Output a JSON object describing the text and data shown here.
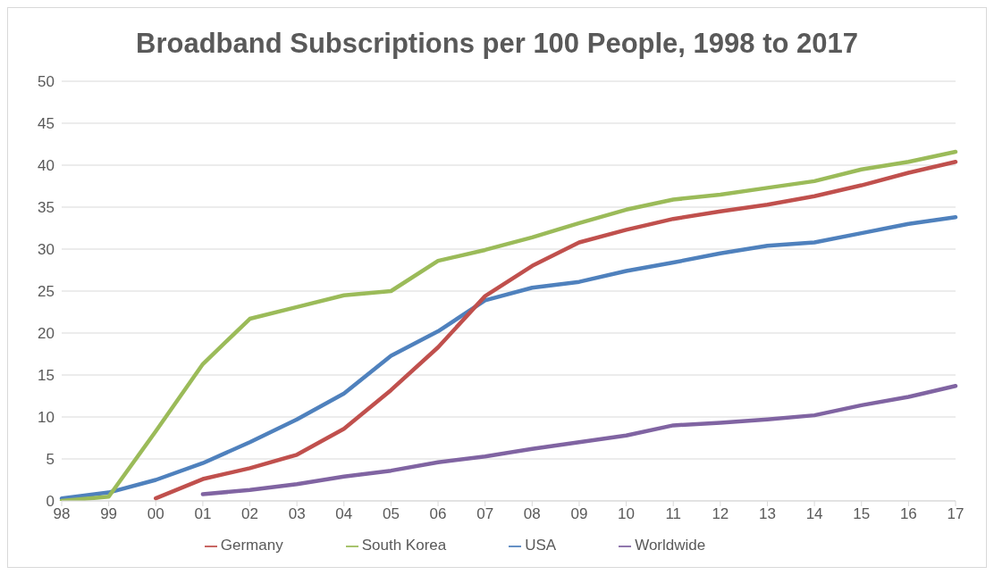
{
  "chart_data": {
    "type": "line",
    "title": "Broadband Subscriptions per 100 People, 1998 to 2017",
    "categories": [
      "98",
      "99",
      "00",
      "01",
      "02",
      "03",
      "04",
      "05",
      "06",
      "07",
      "08",
      "09",
      "10",
      "11",
      "12",
      "13",
      "14",
      "15",
      "16",
      "17"
    ],
    "series": [
      {
        "name": "USA",
        "color": "#4f81bd",
        "values": [
          0.3,
          1.0,
          2.5,
          4.5,
          7.0,
          9.7,
          12.8,
          17.3,
          20.2,
          23.9,
          25.4,
          26.1,
          27.4,
          28.4,
          29.5,
          30.4,
          30.8,
          31.9,
          33.0,
          33.8
        ]
      },
      {
        "name": "Germany",
        "color": "#c0504d",
        "values": [
          null,
          null,
          0.3,
          2.6,
          3.9,
          5.5,
          8.6,
          13.2,
          18.3,
          24.4,
          28.0,
          30.8,
          32.3,
          33.6,
          34.5,
          35.3,
          36.3,
          37.6,
          39.1,
          40.4
        ]
      },
      {
        "name": "South Korea",
        "color": "#9bbb59",
        "values": [
          0,
          0.5,
          8.3,
          16.3,
          21.7,
          23.1,
          24.5,
          25.0,
          28.6,
          29.9,
          31.4,
          33.1,
          34.7,
          35.9,
          36.5,
          37.3,
          38.1,
          39.5,
          40.4,
          41.6
        ]
      },
      {
        "name": "Worldwide",
        "color": "#8064a2",
        "values": [
          null,
          null,
          null,
          0.8,
          1.3,
          2.0,
          2.9,
          3.6,
          4.6,
          5.3,
          6.2,
          7.0,
          7.8,
          9.0,
          9.3,
          9.7,
          10.2,
          11.4,
          12.4,
          13.7
        ]
      }
    ],
    "ylim": [
      0,
      50
    ],
    "yticks": [
      0,
      5,
      10,
      15,
      20,
      25,
      30,
      35,
      40,
      45,
      50
    ],
    "grid": "y",
    "legend": "bottom",
    "marker": "none",
    "line_style": "solid"
  }
}
